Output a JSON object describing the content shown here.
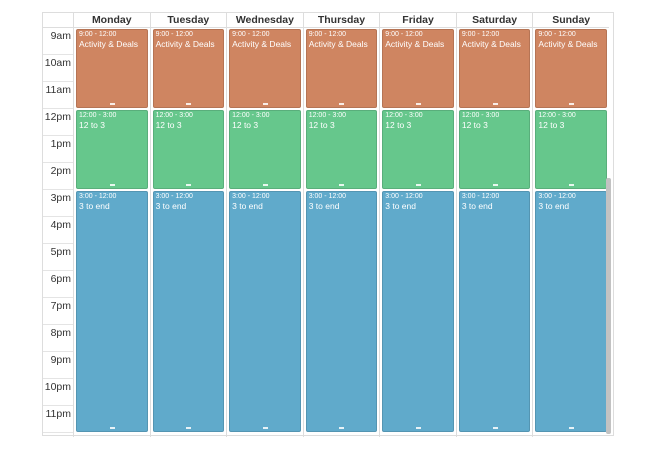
{
  "days": [
    "Monday",
    "Tuesday",
    "Wednesday",
    "Thursday",
    "Friday",
    "Saturday",
    "Sunday"
  ],
  "hours": [
    "9am",
    "10am",
    "11am",
    "12pm",
    "1pm",
    "2pm",
    "3pm",
    "4pm",
    "5pm",
    "6pm",
    "7pm",
    "8pm",
    "9pm",
    "10pm",
    "11pm"
  ],
  "events": [
    {
      "time": "9:00 - 12:00",
      "title": "Activity & Deals",
      "color": "#cf8561",
      "start_hour": 9,
      "end_hour": 12
    },
    {
      "time": "12:00 - 3:00",
      "title": "12 to 3",
      "color": "#66c78c",
      "start_hour": 12,
      "end_hour": 15
    },
    {
      "time": "3:00 - 12:00",
      "title": "3 to end",
      "color": "#60aacb",
      "start_hour": 15,
      "end_hour": 24
    }
  ],
  "colors": {
    "grid_border": "#dddddd",
    "text": "#333333",
    "scrollbar": "#c2c2c2"
  }
}
